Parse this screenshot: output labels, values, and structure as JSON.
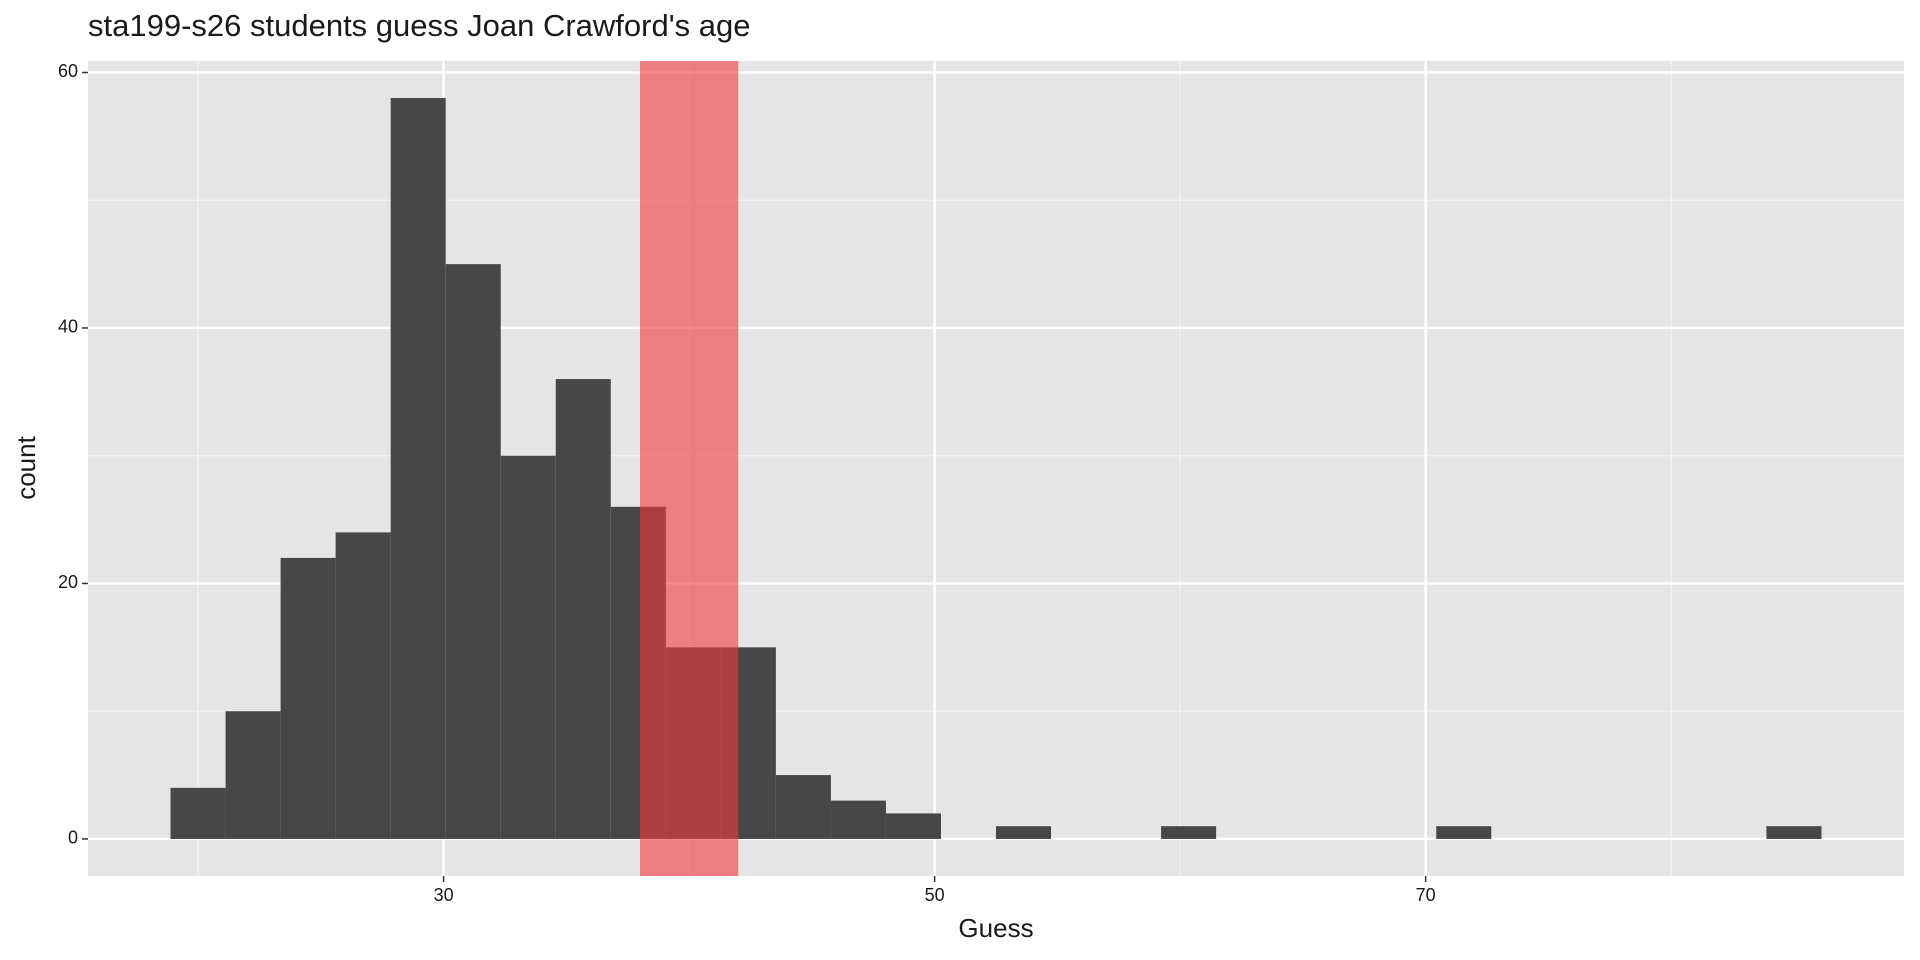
{
  "chart_data": {
    "type": "histogram",
    "title": "sta199-s26 students guess Joan Crawford's age",
    "xlabel": "Guess",
    "ylabel": "count",
    "bins": [
      18.879,
      21.121,
      23.362,
      25.603,
      27.845,
      30.086,
      32.328,
      34.569,
      36.81,
      39.052,
      41.293,
      43.534,
      45.776,
      48.017,
      50.259,
      52.5,
      54.741,
      56.983,
      59.224,
      61.466,
      63.707,
      65.948,
      68.19,
      70.431,
      72.672,
      74.914,
      77.155,
      79.397,
      81.638,
      83.879,
      86.121
    ],
    "values": [
      4,
      10,
      22,
      24,
      58,
      45,
      30,
      36,
      26,
      15,
      15,
      5,
      3,
      2,
      0,
      1,
      0,
      0,
      1,
      0,
      0,
      0,
      0,
      1,
      0,
      0,
      0,
      0,
      0,
      1
    ],
    "color": "#474747",
    "highlight": {
      "xmin": 38,
      "xmax": 42,
      "color": "#f0393d"
    },
    "xlim": [
      15.517,
      89.483
    ],
    "xticks": [
      30,
      50,
      70
    ],
    "minor_xticks": [
      20,
      40,
      60,
      80
    ],
    "ylim": [
      -2.9,
      60.9
    ],
    "yticks": [
      0,
      20,
      40,
      60
    ],
    "minor_yticks": [
      10,
      30,
      50
    ],
    "grid": true
  }
}
